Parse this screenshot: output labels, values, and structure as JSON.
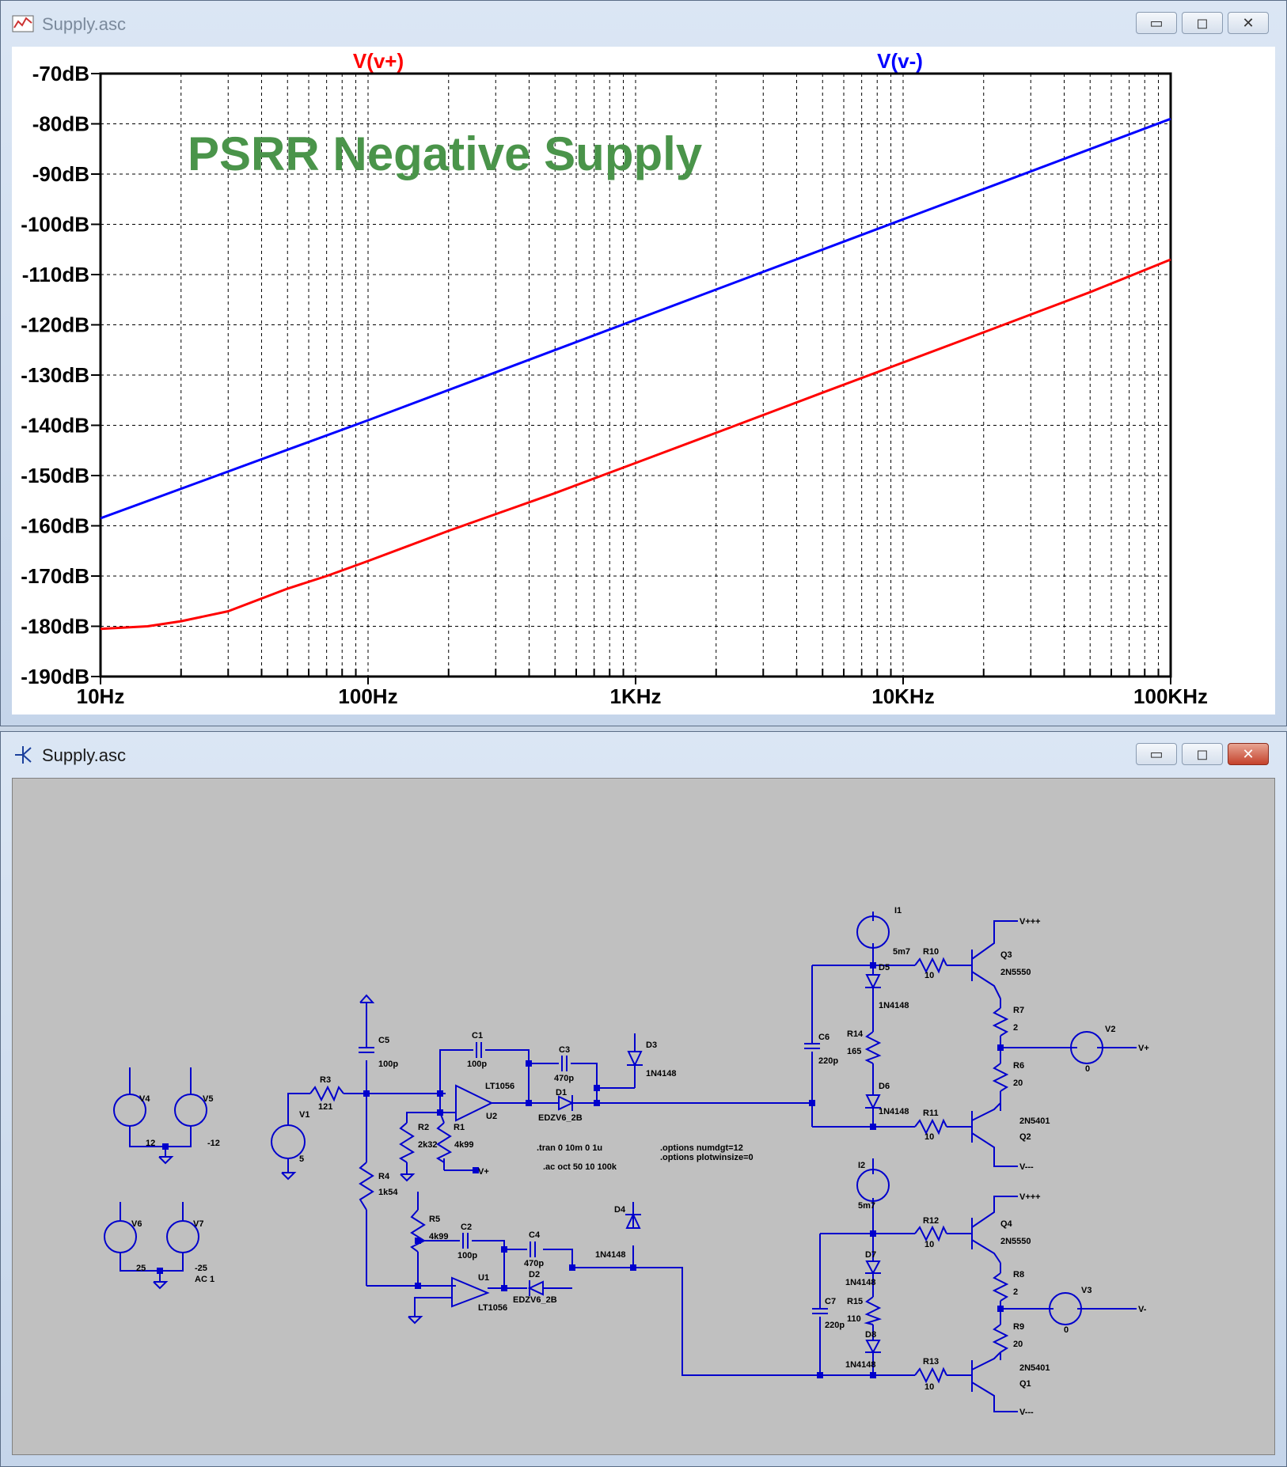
{
  "plot_window": {
    "title": "Supply.asc",
    "buttons": {
      "minimize": "▭",
      "maximize": "◻",
      "close": "✕"
    }
  },
  "schematic_window": {
    "title": "Supply.asc",
    "buttons": {
      "minimize": "▭",
      "maximize": "◻",
      "close": "✕"
    }
  },
  "annotation": "PSRR Negative Supply",
  "colors": {
    "v_plus": "#ff0000",
    "v_minus": "#0000ff",
    "annotation": "#4a944a",
    "wire": "#0000cc",
    "schematic_bg": "#c0c0c0"
  },
  "chart_data": {
    "type": "line",
    "x_scale": "log",
    "x_range": [
      10,
      100000
    ],
    "y_range": [
      -190,
      -70
    ],
    "y_ticks": [
      -70,
      -80,
      -90,
      -100,
      -110,
      -120,
      -130,
      -140,
      -150,
      -160,
      -170,
      -180,
      -190
    ],
    "y_tick_labels": [
      "-70dB",
      "-80dB",
      "-90dB",
      "-100dB",
      "-110dB",
      "-120dB",
      "-130dB",
      "-140dB",
      "-150dB",
      "-160dB",
      "-170dB",
      "-180dB",
      "-190dB"
    ],
    "x_ticks": [
      10,
      100,
      1000,
      10000,
      100000
    ],
    "x_tick_labels": [
      "10Hz",
      "100Hz",
      "1KHz",
      "10KHz",
      "100KHz"
    ],
    "grid": true,
    "series": [
      {
        "name": "V(v+)",
        "color": "#ff0000",
        "x": [
          10,
          15,
          20,
          30,
          50,
          70,
          100,
          200,
          500,
          1000,
          2000,
          5000,
          10000,
          20000,
          50000,
          100000
        ],
        "y": [
          -180.5,
          -180,
          -179,
          -177,
          -172.5,
          -170,
          -167,
          -161,
          -153.5,
          -147.5,
          -141.5,
          -133.5,
          -127.5,
          -121.5,
          -113.5,
          -107
        ]
      },
      {
        "name": "V(v-)",
        "color": "#0000ff",
        "x": [
          10,
          100,
          1000,
          10000,
          100000
        ],
        "y": [
          -158.5,
          -139,
          -119,
          -99,
          -79
        ]
      }
    ]
  },
  "schematic": {
    "sources": [
      "V4",
      "V5",
      "V6",
      "V7",
      "V1",
      "V2",
      "V3",
      "I1",
      "I2"
    ],
    "source_values": {
      "V4": "12",
      "V5": "-12",
      "V6": "25",
      "V7": "-25",
      "V7_ac": "AC 1",
      "V1": "5",
      "V2": "0",
      "V3": "0",
      "I1": "5m7",
      "I2": "5m7"
    },
    "resistors": [
      {
        "ref": "R3",
        "value": "121"
      },
      {
        "ref": "R2",
        "value": "2k32"
      },
      {
        "ref": "R1",
        "value": "4k99"
      },
      {
        "ref": "R4",
        "value": "1k54"
      },
      {
        "ref": "R5",
        "value": "4k99"
      },
      {
        "ref": "R10",
        "value": "10"
      },
      {
        "ref": "R14",
        "value": "165"
      },
      {
        "ref": "R11",
        "value": "10"
      },
      {
        "ref": "R7",
        "value": "2"
      },
      {
        "ref": "R6",
        "value": "20"
      },
      {
        "ref": "R12",
        "value": "10"
      },
      {
        "ref": "R15",
        "value": "110"
      },
      {
        "ref": "R13",
        "value": "10"
      },
      {
        "ref": "R8",
        "value": "2"
      },
      {
        "ref": "R9",
        "value": "20"
      }
    ],
    "capacitors": [
      {
        "ref": "C5",
        "value": "100p"
      },
      {
        "ref": "C1",
        "value": "100p"
      },
      {
        "ref": "C3",
        "value": "470p"
      },
      {
        "ref": "C2",
        "value": "100p"
      },
      {
        "ref": "C4",
        "value": "470p"
      },
      {
        "ref": "C6",
        "value": "220p"
      },
      {
        "ref": "C7",
        "value": "220p"
      }
    ],
    "diodes": [
      {
        "ref": "D1",
        "value": "EDZV6_2B"
      },
      {
        "ref": "D2",
        "value": "EDZV6_2B"
      },
      {
        "ref": "D3",
        "value": "1N4148"
      },
      {
        "ref": "D4",
        "value": "1N4148"
      },
      {
        "ref": "D5",
        "value": "1N4148"
      },
      {
        "ref": "D6",
        "value": "1N4148"
      },
      {
        "ref": "D7",
        "value": "1N4148"
      },
      {
        "ref": "D8",
        "value": "1N4148"
      }
    ],
    "opamps": [
      {
        "ref": "U2",
        "value": "LT1056"
      },
      {
        "ref": "U1",
        "value": "LT1056"
      }
    ],
    "transistors": [
      {
        "ref": "Q3",
        "value": "2N5550"
      },
      {
        "ref": "Q2",
        "value": "2N5401"
      },
      {
        "ref": "Q4",
        "value": "2N5550"
      },
      {
        "ref": "Q1",
        "value": "2N5401"
      }
    ],
    "nets": {
      "vppp": "V+++",
      "vmmm": "V---",
      "vp": "V+",
      "vm": "V-"
    },
    "directives": [
      ".tran 0 10m 0 1u",
      ".ac oct 50 10 100k",
      ".options numdgt=12",
      ".options plotwinsize=0"
    ]
  }
}
